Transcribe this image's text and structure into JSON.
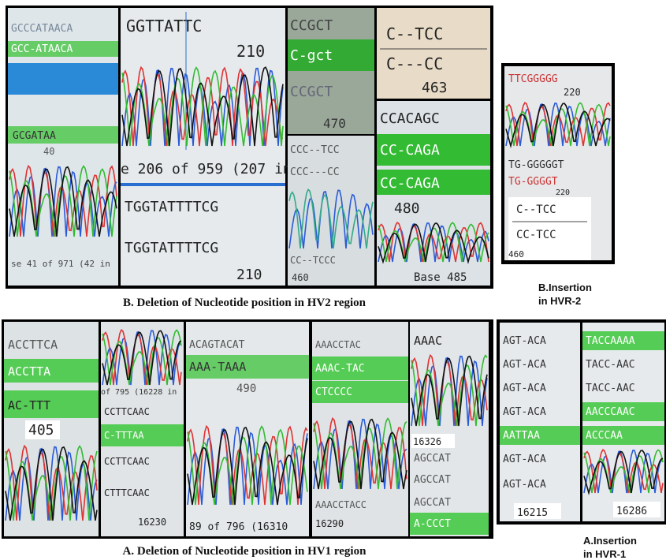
{
  "hv2_deletion": {
    "caption": "B. Deletion of Nucleotide position in HV2 region",
    "panels": [
      [
        "GCCCATAACA",
        "GCC-ATAACA",
        "GCGATAA",
        "40",
        "se 41 of 971 (42 in"
      ],
      [
        "GGTTATTC",
        "210",
        "e 206 of 959 (207 in",
        "TGGTATTTTCG",
        "TGGTATTTTCG",
        "210"
      ],
      [
        "CCGCT",
        "C-gct",
        "CCGCT",
        "470",
        "CCC--TCC",
        "CCC---CC",
        "CC--TCCC",
        "460"
      ],
      [
        "C--TCC",
        "C---CC",
        "463",
        "CCACAGC",
        "CC-CAGA",
        "CC-CAGA",
        "480",
        "Base 485"
      ]
    ]
  },
  "hvr2_insertion": {
    "caption": [
      "B.Insertion",
      "in HVR-2"
    ],
    "texts": [
      "TTCGGGGG",
      "220",
      "TG-GGGGGT",
      "TG-GGGGT",
      "220",
      "C--TCC",
      "CC-TCC",
      "460"
    ]
  },
  "hv1_deletion": {
    "caption": "A. Deletion of Nucleotide position in HV1 region",
    "panels": [
      [
        "ACCTTCA",
        "ACCTTA",
        "AC-TTT",
        "405"
      ],
      [
        "of 795 (16228 in",
        "CCTTCAAC",
        "C-TTTAA",
        "CCTTCAAC",
        "CTTTCAAC",
        "16230"
      ],
      [
        "ACAGTACAT",
        "AAA-TAAA",
        "490",
        "89 of 796 (16310"
      ],
      [
        "AAACCTAC",
        "AAAC-TAC",
        "CTCCCC",
        "AAACCTACC",
        "16290"
      ],
      [
        "AAAC",
        "16326",
        "AGCCAT",
        "AGCCAT",
        "AGCCAT",
        "A-CCCT"
      ]
    ]
  },
  "hvr1_insertion": {
    "caption": [
      "A.Insertion",
      "in HVR-1"
    ],
    "columns": [
      [
        "AGT-ACA",
        "AGT-ACA",
        "AGT-ACA",
        "AGT-ACA",
        "AATTAA",
        "AGT-ACA",
        "AGT-ACA",
        "16215"
      ],
      [
        "TACCAAAA",
        "TACC-AAC",
        "TACC-AAC",
        "AACCCAAC",
        "ACCCAA",
        "16286"
      ]
    ]
  }
}
